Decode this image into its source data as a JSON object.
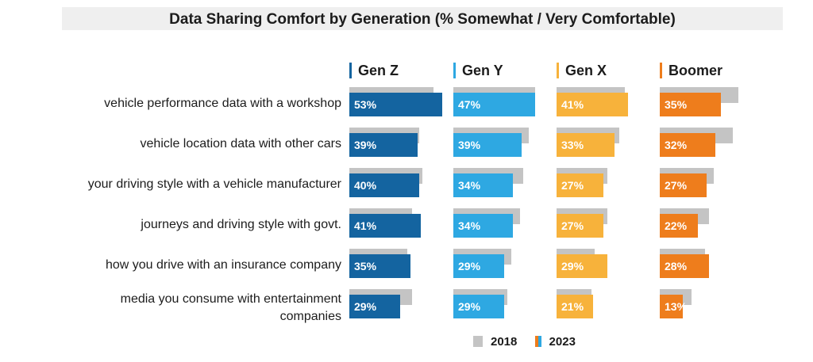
{
  "chart_data": {
    "type": "bar",
    "title": "Data Sharing Comfort by Generation (% Somewhat / Very Comfortable)",
    "categories": [
      "vehicle performance data with a workshop",
      "vehicle location data with other cars",
      "your driving style with a vehicle manufacturer",
      "journeys and driving style with govt.",
      "how you drive with an insurance company",
      "media you consume with entertainment companies"
    ],
    "groups": [
      {
        "name": "Gen Z",
        "color": "#1464a0",
        "values_2023": [
          53,
          39,
          40,
          41,
          35,
          29
        ],
        "values_2018": [
          48,
          40,
          42,
          36,
          33,
          36
        ]
      },
      {
        "name": "Gen Y",
        "color": "#2ea8e2",
        "values_2023": [
          47,
          39,
          34,
          34,
          29,
          29
        ],
        "values_2018": [
          47,
          43,
          40,
          38,
          33,
          31
        ]
      },
      {
        "name": "Gen X",
        "color": "#f7b23b",
        "values_2023": [
          41,
          33,
          27,
          27,
          29,
          21
        ],
        "values_2018": [
          39,
          36,
          29,
          29,
          22,
          20
        ]
      },
      {
        "name": "Boomer",
        "color": "#ee7d1c",
        "values_2023": [
          35,
          32,
          27,
          22,
          28,
          13
        ],
        "values_2018": [
          45,
          42,
          31,
          28,
          26,
          18
        ]
      }
    ],
    "legend": [
      {
        "label": "2018",
        "color": "#c4c4c4"
      },
      {
        "label": "2023",
        "colors": [
          "#ee7d1c",
          "#2ea8e2"
        ]
      }
    ],
    "xlim": [
      0,
      55
    ],
    "grid": false,
    "legend_position": "bottom-center"
  }
}
